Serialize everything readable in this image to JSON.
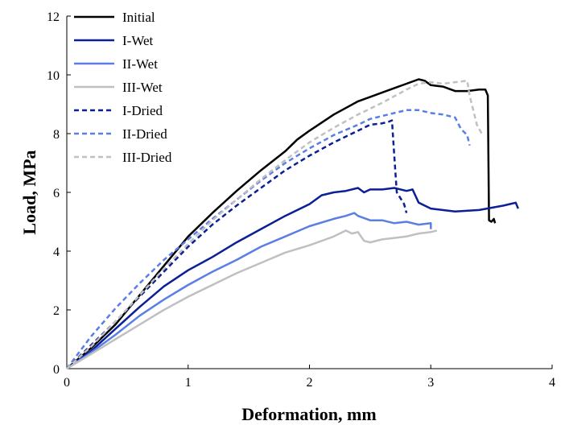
{
  "chart_data": {
    "type": "line",
    "title": "",
    "xlabel": "Deformation, mm",
    "ylabel": "Load, MPa",
    "xlim": [
      0,
      4
    ],
    "ylim": [
      0,
      12
    ],
    "xticks": [
      0,
      1,
      2,
      3,
      4
    ],
    "yticks": [
      0,
      2,
      4,
      6,
      8,
      10,
      12
    ],
    "grid": false,
    "legend_position": "top-left",
    "series": [
      {
        "name": "Initial",
        "color": "#000000",
        "dash": "solid",
        "points": [
          [
            0,
            0
          ],
          [
            0.2,
            0.7
          ],
          [
            0.4,
            1.5
          ],
          [
            0.6,
            2.5
          ],
          [
            0.8,
            3.5
          ],
          [
            1.0,
            4.5
          ],
          [
            1.2,
            5.3
          ],
          [
            1.4,
            6.05
          ],
          [
            1.6,
            6.75
          ],
          [
            1.8,
            7.4
          ],
          [
            1.9,
            7.8
          ],
          [
            2.0,
            8.1
          ],
          [
            2.2,
            8.65
          ],
          [
            2.4,
            9.1
          ],
          [
            2.5,
            9.25
          ],
          [
            2.6,
            9.4
          ],
          [
            2.7,
            9.55
          ],
          [
            2.8,
            9.7
          ],
          [
            2.9,
            9.85
          ],
          [
            2.95,
            9.8
          ],
          [
            3.0,
            9.65
          ],
          [
            3.1,
            9.6
          ],
          [
            3.2,
            9.45
          ],
          [
            3.3,
            9.45
          ],
          [
            3.4,
            9.5
          ],
          [
            3.45,
            9.5
          ],
          [
            3.47,
            9.3
          ],
          [
            3.48,
            5.05
          ],
          [
            3.5,
            5.0
          ],
          [
            3.52,
            5.1
          ],
          [
            3.53,
            4.95
          ]
        ]
      },
      {
        "name": "I-Wet",
        "color": "#0b1f96",
        "dash": "solid",
        "points": [
          [
            0,
            0
          ],
          [
            0.2,
            0.6
          ],
          [
            0.4,
            1.35
          ],
          [
            0.6,
            2.1
          ],
          [
            0.8,
            2.8
          ],
          [
            1.0,
            3.35
          ],
          [
            1.2,
            3.8
          ],
          [
            1.4,
            4.3
          ],
          [
            1.6,
            4.75
          ],
          [
            1.8,
            5.2
          ],
          [
            2.0,
            5.6
          ],
          [
            2.1,
            5.9
          ],
          [
            2.2,
            6.0
          ],
          [
            2.3,
            6.05
          ],
          [
            2.4,
            6.15
          ],
          [
            2.45,
            6.0
          ],
          [
            2.5,
            6.1
          ],
          [
            2.6,
            6.1
          ],
          [
            2.7,
            6.15
          ],
          [
            2.8,
            6.05
          ],
          [
            2.85,
            6.1
          ],
          [
            2.9,
            5.65
          ],
          [
            3.0,
            5.45
          ],
          [
            3.2,
            5.35
          ],
          [
            3.4,
            5.4
          ],
          [
            3.6,
            5.55
          ],
          [
            3.7,
            5.65
          ],
          [
            3.72,
            5.45
          ]
        ]
      },
      {
        "name": "II-Wet",
        "color": "#5a7ee6",
        "dash": "solid",
        "points": [
          [
            0,
            0
          ],
          [
            0.2,
            0.55
          ],
          [
            0.4,
            1.15
          ],
          [
            0.6,
            1.8
          ],
          [
            0.8,
            2.35
          ],
          [
            1.0,
            2.85
          ],
          [
            1.2,
            3.3
          ],
          [
            1.4,
            3.7
          ],
          [
            1.6,
            4.15
          ],
          [
            1.8,
            4.5
          ],
          [
            2.0,
            4.85
          ],
          [
            2.2,
            5.1
          ],
          [
            2.3,
            5.2
          ],
          [
            2.37,
            5.3
          ],
          [
            2.4,
            5.2
          ],
          [
            2.5,
            5.05
          ],
          [
            2.6,
            5.05
          ],
          [
            2.7,
            4.95
          ],
          [
            2.8,
            5.0
          ],
          [
            2.9,
            4.9
          ],
          [
            3.0,
            4.95
          ],
          [
            3.0,
            4.75
          ]
        ]
      },
      {
        "name": "III-Wet",
        "color": "#c0c0c0",
        "dash": "solid",
        "points": [
          [
            0,
            0
          ],
          [
            0.2,
            0.5
          ],
          [
            0.4,
            1.0
          ],
          [
            0.6,
            1.5
          ],
          [
            0.8,
            2.0
          ],
          [
            1.0,
            2.45
          ],
          [
            1.2,
            2.85
          ],
          [
            1.4,
            3.25
          ],
          [
            1.6,
            3.6
          ],
          [
            1.8,
            3.95
          ],
          [
            2.0,
            4.2
          ],
          [
            2.2,
            4.5
          ],
          [
            2.3,
            4.7
          ],
          [
            2.35,
            4.6
          ],
          [
            2.4,
            4.65
          ],
          [
            2.45,
            4.35
          ],
          [
            2.5,
            4.3
          ],
          [
            2.6,
            4.4
          ],
          [
            2.7,
            4.45
          ],
          [
            2.8,
            4.5
          ],
          [
            2.9,
            4.6
          ],
          [
            3.0,
            4.65
          ],
          [
            3.05,
            4.7
          ]
        ]
      },
      {
        "name": "I-Dried",
        "color": "#0b1f96",
        "dash": "dashed",
        "points": [
          [
            0,
            0
          ],
          [
            0.2,
            0.8
          ],
          [
            0.4,
            1.6
          ],
          [
            0.6,
            2.45
          ],
          [
            0.8,
            3.3
          ],
          [
            1.0,
            4.15
          ],
          [
            1.2,
            4.9
          ],
          [
            1.4,
            5.55
          ],
          [
            1.6,
            6.15
          ],
          [
            1.8,
            6.75
          ],
          [
            2.0,
            7.25
          ],
          [
            2.2,
            7.7
          ],
          [
            2.4,
            8.1
          ],
          [
            2.5,
            8.3
          ],
          [
            2.6,
            8.35
          ],
          [
            2.65,
            8.4
          ],
          [
            2.68,
            8.45
          ],
          [
            2.7,
            7.2
          ],
          [
            2.72,
            6.0
          ],
          [
            2.75,
            5.8
          ],
          [
            2.78,
            5.6
          ],
          [
            2.8,
            5.3
          ]
        ]
      },
      {
        "name": "II-Dried",
        "color": "#5a7ee6",
        "dash": "dashed",
        "points": [
          [
            0,
            0
          ],
          [
            0.2,
            1.1
          ],
          [
            0.4,
            2.05
          ],
          [
            0.6,
            2.9
          ],
          [
            0.8,
            3.7
          ],
          [
            1.0,
            4.4
          ],
          [
            1.2,
            5.1
          ],
          [
            1.4,
            5.75
          ],
          [
            1.6,
            6.4
          ],
          [
            1.8,
            7.0
          ],
          [
            2.0,
            7.5
          ],
          [
            2.2,
            7.95
          ],
          [
            2.4,
            8.3
          ],
          [
            2.5,
            8.5
          ],
          [
            2.6,
            8.6
          ],
          [
            2.7,
            8.7
          ],
          [
            2.8,
            8.8
          ],
          [
            2.9,
            8.8
          ],
          [
            3.0,
            8.7
          ],
          [
            3.1,
            8.65
          ],
          [
            3.2,
            8.55
          ],
          [
            3.25,
            8.15
          ],
          [
            3.3,
            7.95
          ],
          [
            3.32,
            7.6
          ]
        ]
      },
      {
        "name": "III-Dried",
        "color": "#c0c0c0",
        "dash": "dashed",
        "points": [
          [
            0,
            0
          ],
          [
            0.2,
            0.75
          ],
          [
            0.4,
            1.6
          ],
          [
            0.6,
            2.5
          ],
          [
            0.8,
            3.4
          ],
          [
            1.0,
            4.25
          ],
          [
            1.2,
            5.05
          ],
          [
            1.4,
            5.75
          ],
          [
            1.6,
            6.45
          ],
          [
            1.8,
            7.1
          ],
          [
            2.0,
            7.7
          ],
          [
            2.2,
            8.2
          ],
          [
            2.4,
            8.65
          ],
          [
            2.6,
            9.05
          ],
          [
            2.8,
            9.5
          ],
          [
            2.9,
            9.7
          ],
          [
            3.0,
            9.75
          ],
          [
            3.1,
            9.7
          ],
          [
            3.2,
            9.75
          ],
          [
            3.3,
            9.8
          ],
          [
            3.32,
            9.3
          ],
          [
            3.35,
            8.8
          ],
          [
            3.38,
            8.3
          ],
          [
            3.42,
            8.0
          ]
        ]
      }
    ]
  }
}
